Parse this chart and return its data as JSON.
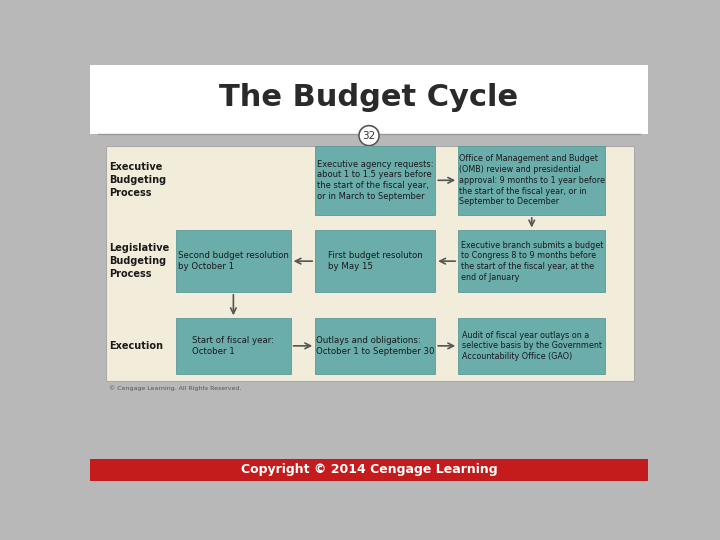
{
  "title": "The Budget Cycle",
  "slide_number": "32",
  "title_fontsize": 22,
  "title_color": "#2a2a2a",
  "bg_color": "#b8b8b8",
  "white_bg": "#ffffff",
  "content_bg": "#f2edda",
  "box_color": "#6aadab",
  "box_edge_color": "#5a9a98",
  "footer_bg": "#c41c1c",
  "footer_text": "Copyright © 2014 Cengage Learning",
  "footer_color": "#ffffff",
  "copyright_small": "© Cengage Learning. All Rights Reserved.",
  "row_labels": [
    "Executive\nBudgeting\nProcess",
    "Legislative\nBudgeting\nProcess",
    "Execution"
  ],
  "boxes": [
    [
      null,
      "Executive agency requests:\nabout 1 to 1.5 years before\nthe start of the fiscal year,\nor in March to September",
      "Office of Management and Budget\n(OMB) review and presidential\napproval: 9 months to 1 year before\nthe start of the fiscal year, or in\nSeptember to December"
    ],
    [
      "Second budget resolution\nby October 1",
      "First budget resoluton\nby May 15",
      "Executive branch submits a budget\nto Congress 8 to 9 months before\nthe start of the fiscal year, at the\nend of January"
    ],
    [
      "Start of fiscal year:\nOctober 1",
      "Outlays and obligations:\nOctober 1 to September 30",
      "Audit of fiscal year outlays on a\nselective basis by the Government\nAccountability Office (GAO)"
    ]
  ]
}
